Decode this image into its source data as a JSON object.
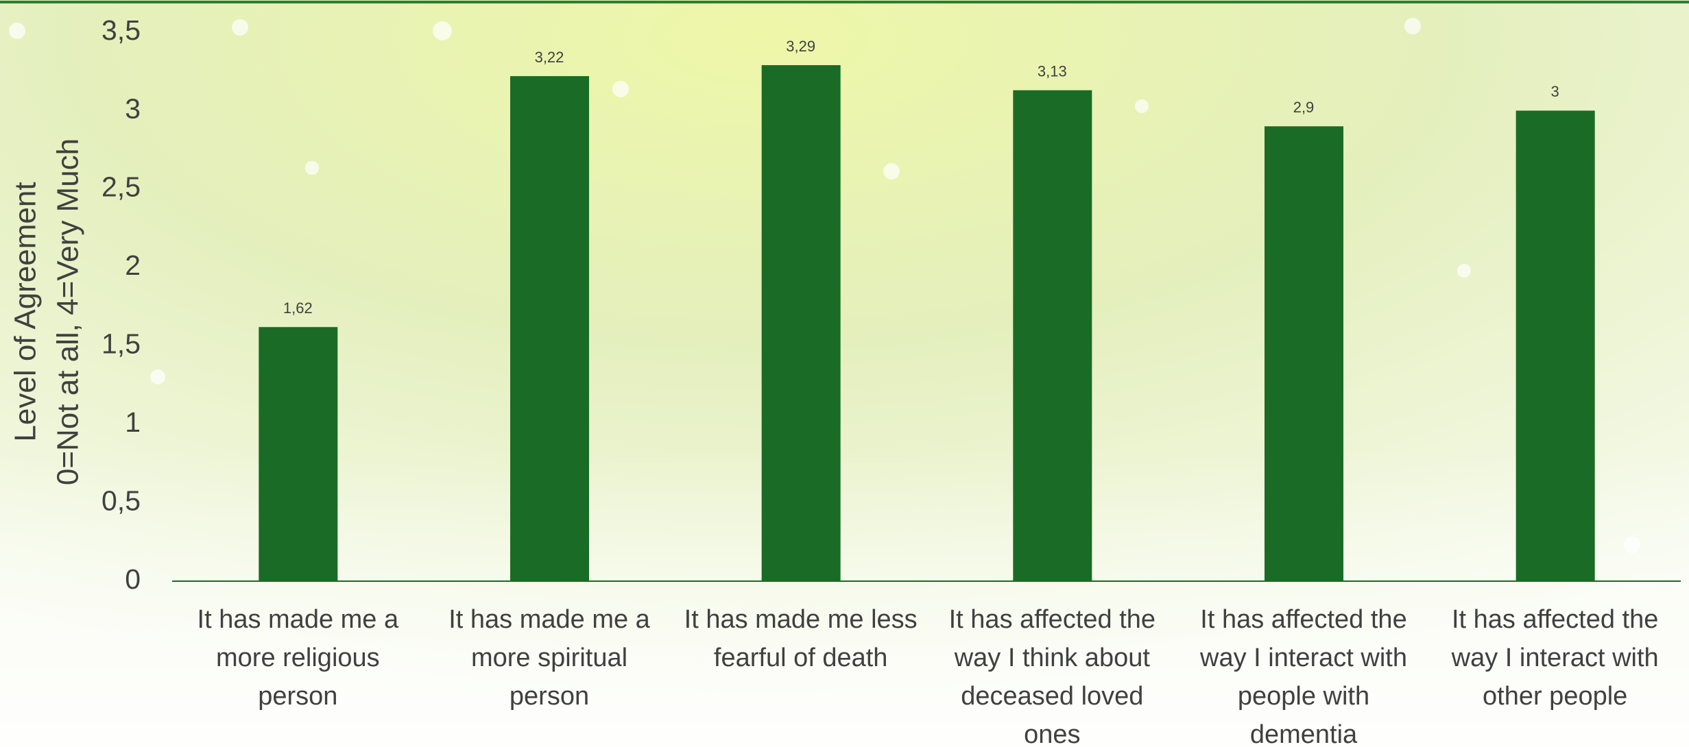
{
  "chart_data": {
    "type": "bar",
    "ylabel": [
      "Level of Agreement",
      "0=Not at all, 4=Very Much"
    ],
    "categories": [
      "It has made me a more religious person",
      "It has made me a more spiritual person",
      "It has made me less fearful of death",
      "It has affected the way I think about deceased loved ones",
      "It has affected the way I interact with people with dementia",
      "It has affected the way I interact with other people"
    ],
    "values": [
      1.62,
      3.22,
      3.29,
      3.13,
      2.9,
      3
    ],
    "value_labels": [
      "1,62",
      "3,22",
      "3,29",
      "3,13",
      "2,9",
      "3"
    ],
    "color": "#1a6b25",
    "ylim": [
      0,
      3.5
    ],
    "yticks": [
      0,
      {
        "value": 0.5,
        "label": "0,5"
      },
      1,
      {
        "value": 1.5,
        "label": "1,5"
      },
      2,
      {
        "value": 2.5,
        "label": "2,5"
      },
      3,
      {
        "value": 3.5,
        "label": "3,5"
      }
    ],
    "grid": false
  }
}
